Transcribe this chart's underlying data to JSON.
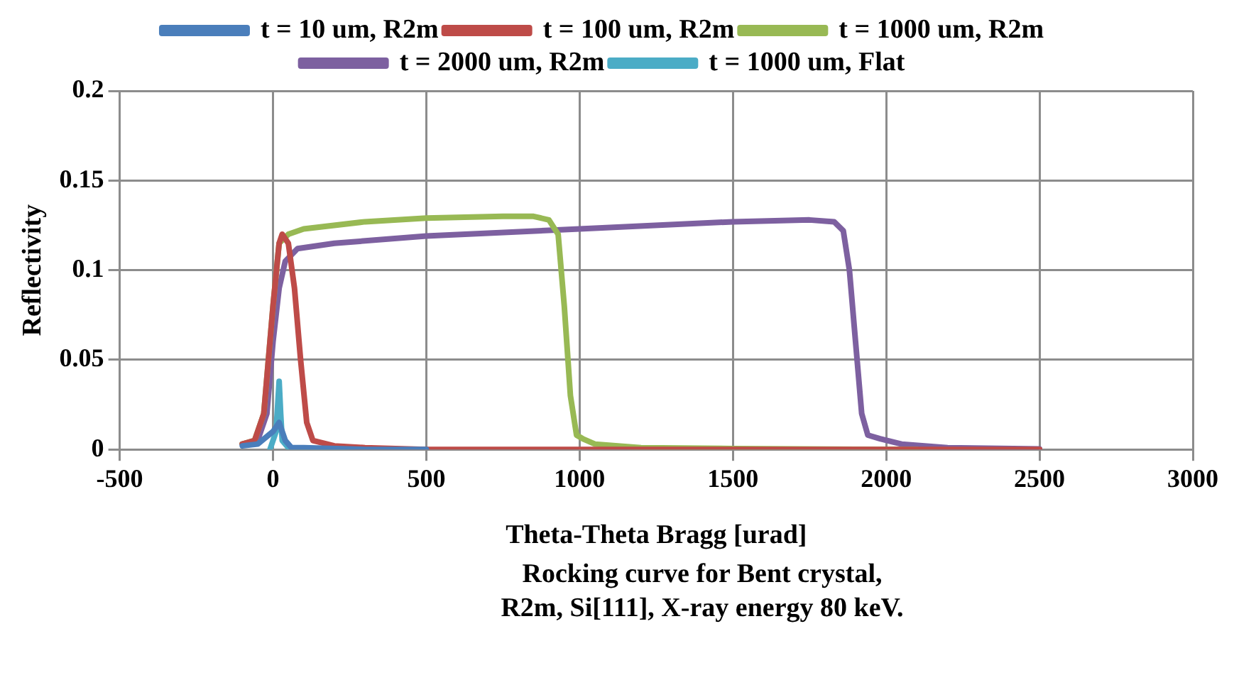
{
  "chart_data": {
    "type": "line",
    "xlabel": "Theta-Theta Bragg [urad]",
    "ylabel": "Reflectivity",
    "annotations": [
      "Rocking curve for Bent crystal,",
      "R2m, Si[111], X-ray energy 80 keV."
    ],
    "xlim": [
      -500,
      3000
    ],
    "xticks": [
      -500,
      0,
      500,
      1000,
      1500,
      2000,
      2500,
      3000
    ],
    "ylim": [
      0,
      0.2
    ],
    "yticks": [
      0,
      0.05,
      0.1,
      0.15,
      0.2
    ],
    "grid": true,
    "legend": "top",
    "marker": "none",
    "line_style": "solid",
    "series": [
      {
        "name": "t = 10 um, R2m",
        "color": "#4a7ebb",
        "x": [
          -100,
          -50,
          0,
          20,
          40,
          60,
          100,
          300,
          500
        ],
        "values": [
          0.002,
          0.003,
          0.01,
          0.015,
          0.005,
          0.001,
          0.001,
          0,
          0
        ]
      },
      {
        "name": "t = 100 um, R2m",
        "color": "#be4b48",
        "x": [
          -100,
          -60,
          -30,
          0,
          20,
          30,
          50,
          70,
          90,
          110,
          130,
          200,
          300,
          500,
          1000,
          1500,
          2000,
          2500
        ],
        "values": [
          0.003,
          0.005,
          0.02,
          0.08,
          0.115,
          0.12,
          0.115,
          0.09,
          0.05,
          0.015,
          0.005,
          0.002,
          0.001,
          0,
          0,
          0,
          0,
          0
        ]
      },
      {
        "name": "t = 1000 um, R2m",
        "color": "#98b954",
        "x": [
          -100,
          -60,
          -30,
          0,
          20,
          50,
          100,
          300,
          500,
          750,
          850,
          900,
          930,
          950,
          970,
          990,
          1010,
          1050,
          1200,
          1500,
          2000,
          2100
        ],
        "values": [
          0.003,
          0.005,
          0.02,
          0.08,
          0.115,
          0.12,
          0.123,
          0.127,
          0.129,
          0.13,
          0.13,
          0.128,
          0.12,
          0.08,
          0.03,
          0.008,
          0.006,
          0.003,
          0.001,
          0.0005,
          0,
          0
        ]
      },
      {
        "name": "t = 2000 um, R2m",
        "color": "#7d60a0",
        "x": [
          -100,
          -50,
          -20,
          0,
          20,
          40,
          80,
          200,
          500,
          1000,
          1500,
          1750,
          1830,
          1860,
          1880,
          1900,
          1920,
          1940,
          1980,
          2050,
          2200,
          2500
        ],
        "values": [
          0.003,
          0.005,
          0.02,
          0.06,
          0.09,
          0.105,
          0.112,
          0.115,
          0.119,
          0.123,
          0.127,
          0.128,
          0.127,
          0.122,
          0.1,
          0.06,
          0.02,
          0.008,
          0.006,
          0.003,
          0.001,
          0.0003
        ]
      },
      {
        "name": "t = 1000 um, Flat",
        "color": "#4bacc6",
        "x": [
          -10,
          10,
          20,
          25,
          30,
          50,
          100,
          500
        ],
        "values": [
          0,
          0.01,
          0.038,
          0.02,
          0.005,
          0.001,
          0.0005,
          0
        ]
      }
    ]
  }
}
